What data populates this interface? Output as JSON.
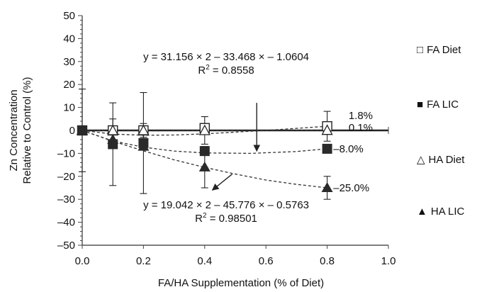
{
  "chart_data": {
    "type": "scatter",
    "title": "",
    "xlabel": "FA/HA Supplementation (% of Diet)",
    "ylabel": [
      "Zn Concentration",
      "Relative to Control (%)"
    ],
    "xlim": [
      0.0,
      1.0
    ],
    "ylim": [
      -50,
      50
    ],
    "x_ticks": [
      "0.0",
      "0.2",
      "0.4",
      "0.6",
      "0.8",
      "1.0"
    ],
    "y_ticks": [
      "50",
      "40",
      "30",
      "20",
      "10",
      "0",
      "–10",
      "–20",
      "–30",
      "–40",
      "–50"
    ],
    "x_tick_values": [
      0.0,
      0.2,
      0.4,
      0.6,
      0.8,
      1.0
    ],
    "y_tick_values": [
      50,
      40,
      30,
      20,
      10,
      0,
      -10,
      -20,
      -30,
      -40,
      -50
    ],
    "series": [
      {
        "name": "FA Diet",
        "marker": "open-square",
        "x": [
          0.0,
          0.1,
          0.2,
          0.4,
          0.8
        ],
        "y": [
          0,
          0,
          0,
          1,
          1.8
        ],
        "err": [
          null,
          null,
          null,
          null,
          6.5
        ]
      },
      {
        "name": "FA LIC",
        "marker": "filled-square",
        "x": [
          0.0,
          0.1,
          0.2,
          0.4,
          0.8
        ],
        "y": [
          0,
          -6,
          -5.5,
          -9,
          -8
        ],
        "err": [
          null,
          18,
          22,
          null,
          null
        ]
      },
      {
        "name": "HA Diet",
        "marker": "open-triangle",
        "x": [
          0.0,
          0.1,
          0.2,
          0.4,
          0.8
        ],
        "y": [
          0,
          0,
          0,
          0,
          0.1
        ],
        "err": [
          18,
          5,
          3,
          6,
          null
        ]
      },
      {
        "name": "HA LIC",
        "marker": "filled-triangle",
        "x": [
          0.0,
          0.1,
          0.2,
          0.4,
          0.8
        ],
        "y": [
          0,
          -4,
          -7,
          -16,
          -25
        ],
        "err": [
          null,
          null,
          null,
          9,
          5
        ]
      }
    ],
    "trendlines": [
      {
        "points": [
          [
            0,
            0
          ],
          [
            0.1,
            -1.6
          ],
          [
            0.2,
            -2.1
          ],
          [
            0.3,
            -2
          ],
          [
            0.4,
            -1.5
          ],
          [
            0.6,
            0
          ],
          [
            0.8,
            1.8
          ]
        ]
      },
      {
        "points": [
          [
            0,
            0
          ],
          [
            0.1,
            -4.6
          ],
          [
            0.2,
            -7.3
          ],
          [
            0.3,
            -9
          ],
          [
            0.4,
            -9.8
          ],
          [
            0.55,
            -10
          ],
          [
            0.7,
            -9.2
          ],
          [
            0.8,
            -8
          ]
        ]
      },
      {
        "points": [
          [
            0,
            0
          ],
          [
            0.1,
            -0.1
          ],
          [
            0.2,
            -0.2
          ],
          [
            0.4,
            -0.1
          ],
          [
            0.6,
            0
          ],
          [
            0.8,
            0.1
          ]
        ]
      },
      {
        "points": [
          [
            0,
            0
          ],
          [
            0.1,
            -4.7
          ],
          [
            0.2,
            -8.9
          ],
          [
            0.3,
            -12.8
          ],
          [
            0.4,
            -16.1
          ],
          [
            0.5,
            -19
          ],
          [
            0.6,
            -21.6
          ],
          [
            0.7,
            -23.5
          ],
          [
            0.8,
            -25
          ]
        ]
      }
    ],
    "end_labels": [
      {
        "text": "1.8%",
        "x": 0.87,
        "y": 6.5
      },
      {
        "text": "0.1%",
        "x": 0.87,
        "y": 1.3
      },
      {
        "text": "–8.0%",
        "x": 0.82,
        "y": -8
      },
      {
        "text": "–25.0%",
        "x": 0.82,
        "y": -25
      }
    ],
    "annotations": [
      {
        "lines": [
          "y = 31.156 × 2 – 33.468 × – 1.0604",
          "R2 = 0.8558"
        ],
        "x": 0.47,
        "y": 30.5
      },
      {
        "lines": [
          "y = 19.042 × 2 – 45.776 × – 0.5763",
          "R2 = 0.98501"
        ],
        "x": 0.47,
        "y": -34
      }
    ],
    "arrows": [
      {
        "from": [
          0.57,
          12
        ],
        "to": [
          0.57,
          -9
        ]
      },
      {
        "from": [
          0.49,
          -19
        ],
        "to": [
          0.425,
          -26
        ]
      }
    ],
    "legend_position": "right",
    "grid": false
  }
}
